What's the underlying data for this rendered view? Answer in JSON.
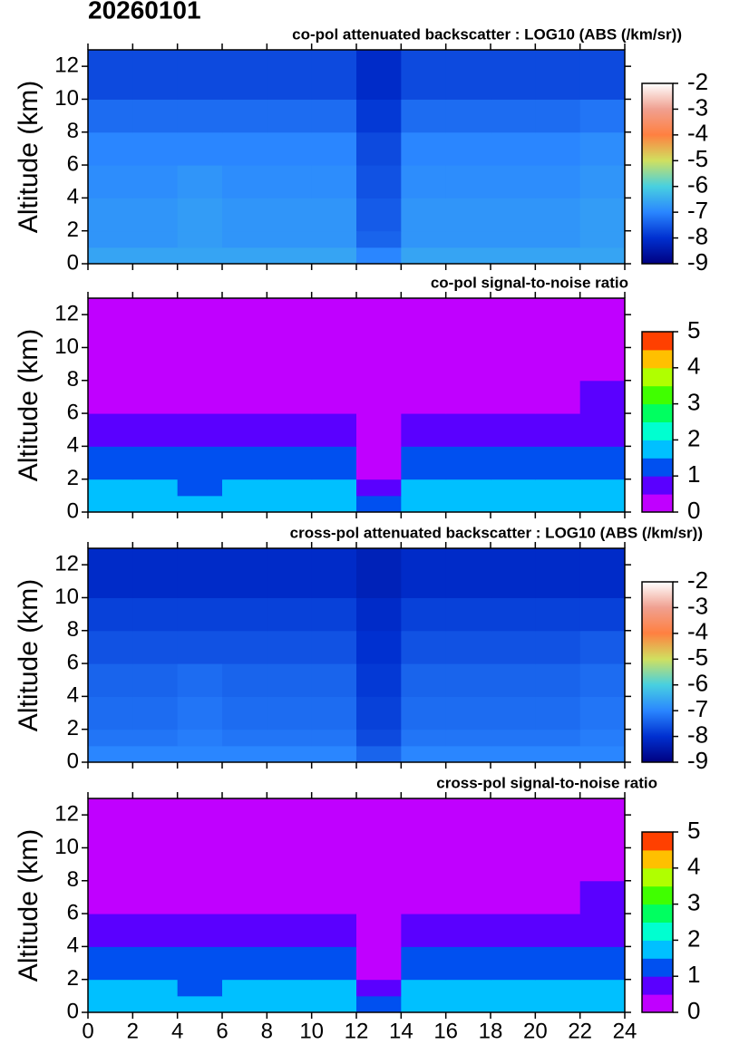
{
  "title": "20260101",
  "chart_data": [
    {
      "type": "heatmap",
      "title": "co-pol attenuated backscatter : LOG10 (ABS (/km/sr))",
      "y_label": "Altitude (km)",
      "xlim": [
        0,
        24
      ],
      "xticks": [
        0,
        2,
        4,
        6,
        8,
        10,
        12,
        14,
        16,
        18,
        20,
        22,
        24
      ],
      "xtick_labels": false,
      "ylim": [
        0,
        13
      ],
      "yticks": [
        0,
        2,
        4,
        6,
        8,
        10,
        12
      ],
      "x": [
        0,
        2,
        4,
        6,
        8,
        10,
        12,
        14,
        16,
        18,
        20,
        22,
        24
      ],
      "y": [
        0,
        1,
        2,
        4,
        6,
        8,
        10,
        13
      ],
      "z": [
        [
          -6.6,
          -6.6,
          -6.6,
          -6.6,
          -6.6,
          -6.6,
          -7.0,
          -6.6,
          -6.6,
          -6.6,
          -6.6,
          -6.6
        ],
        [
          -6.8,
          -6.8,
          -6.7,
          -6.8,
          -6.8,
          -6.8,
          -7.4,
          -6.8,
          -6.8,
          -6.8,
          -6.8,
          -6.7
        ],
        [
          -6.8,
          -6.8,
          -6.7,
          -6.8,
          -6.8,
          -6.8,
          -7.5,
          -6.8,
          -6.8,
          -6.8,
          -6.8,
          -6.7
        ],
        [
          -6.9,
          -6.9,
          -6.8,
          -6.9,
          -6.9,
          -6.9,
          -7.6,
          -6.9,
          -6.9,
          -6.9,
          -6.9,
          -6.8
        ],
        [
          -7.0,
          -7.0,
          -7.0,
          -7.0,
          -7.0,
          -7.0,
          -7.7,
          -7.0,
          -7.0,
          -7.0,
          -7.0,
          -6.9
        ],
        [
          -7.3,
          -7.3,
          -7.3,
          -7.3,
          -7.3,
          -7.3,
          -7.9,
          -7.3,
          -7.3,
          -7.3,
          -7.3,
          -7.2
        ],
        [
          -7.7,
          -7.7,
          -7.7,
          -7.7,
          -7.7,
          -7.7,
          -8.1,
          -7.7,
          -7.7,
          -7.7,
          -7.7,
          -7.7
        ]
      ],
      "zlim": [
        -9,
        -2
      ],
      "zticks": [
        -9,
        -8,
        -7,
        -6,
        -5,
        -4,
        -3,
        -2
      ],
      "discrete": false,
      "colors": [
        "#000080",
        "#0030d0",
        "#2a86ff",
        "#48d0e0",
        "#d0e060",
        "#ff8040",
        "#f0a090",
        "#ffffff"
      ]
    },
    {
      "type": "heatmap",
      "title": "co-pol signal-to-noise ratio",
      "y_label": "Altitude (km)",
      "xlim": [
        0,
        24
      ],
      "xticks": [
        0,
        2,
        4,
        6,
        8,
        10,
        12,
        14,
        16,
        18,
        20,
        22,
        24
      ],
      "xtick_labels": false,
      "ylim": [
        0,
        13
      ],
      "yticks": [
        0,
        2,
        4,
        6,
        8,
        10,
        12
      ],
      "x": [
        0,
        2,
        4,
        6,
        8,
        10,
        12,
        14,
        16,
        18,
        20,
        22,
        24
      ],
      "y": [
        0,
        1,
        2,
        4,
        6,
        8,
        10,
        13
      ],
      "z": [
        [
          1.8,
          1.8,
          1.8,
          1.8,
          1.8,
          1.8,
          1.4,
          1.8,
          1.8,
          1.8,
          1.8,
          1.8
        ],
        [
          1.7,
          1.7,
          1.3,
          1.7,
          1.7,
          1.7,
          0.7,
          1.7,
          1.7,
          1.7,
          1.7,
          1.7
        ],
        [
          1.2,
          1.2,
          1.2,
          1.2,
          1.2,
          1.2,
          0.4,
          1.2,
          1.2,
          1.2,
          1.2,
          1.2
        ],
        [
          0.8,
          0.8,
          0.7,
          0.7,
          0.7,
          0.8,
          0.3,
          0.8,
          0.8,
          0.8,
          0.8,
          0.8
        ],
        [
          0.4,
          0.4,
          0.4,
          0.4,
          0.4,
          0.4,
          0.2,
          0.4,
          0.4,
          0.4,
          0.4,
          0.6
        ],
        [
          0.3,
          0.3,
          0.3,
          0.3,
          0.3,
          0.3,
          0.1,
          0.3,
          0.3,
          0.3,
          0.3,
          0.3
        ],
        [
          0.1,
          0.1,
          0.1,
          0.1,
          0.1,
          0.1,
          0.1,
          0.1,
          0.1,
          0.1,
          0.1,
          0.1
        ]
      ],
      "zlim": [
        0,
        5
      ],
      "zticks": [
        0,
        1,
        2,
        3,
        4,
        5
      ],
      "discrete": true,
      "colors": [
        "#c000ff",
        "#5a00ff",
        "#0050f0",
        "#00c0ff",
        "#00ffd0",
        "#00ff60",
        "#40ff00",
        "#b0ff00",
        "#ffc000",
        "#ff4000"
      ]
    },
    {
      "type": "heatmap",
      "title": "cross-pol attenuated backscatter : LOG10 (ABS (/km/sr))",
      "y_label": "Altitude (km)",
      "xlim": [
        0,
        24
      ],
      "xticks": [
        0,
        2,
        4,
        6,
        8,
        10,
        12,
        14,
        16,
        18,
        20,
        22,
        24
      ],
      "xtick_labels": false,
      "ylim": [
        0,
        13
      ],
      "yticks": [
        0,
        2,
        4,
        6,
        8,
        10,
        12
      ],
      "x": [
        0,
        2,
        4,
        6,
        8,
        10,
        12,
        14,
        16,
        18,
        20,
        22,
        24
      ],
      "y": [
        0,
        1,
        2,
        4,
        6,
        8,
        10,
        13
      ],
      "z": [
        [
          -7.0,
          -7.0,
          -7.0,
          -7.0,
          -7.0,
          -7.0,
          -7.4,
          -7.0,
          -7.0,
          -7.0,
          -7.0,
          -7.0
        ],
        [
          -7.2,
          -7.2,
          -7.1,
          -7.2,
          -7.2,
          -7.2,
          -7.7,
          -7.2,
          -7.2,
          -7.2,
          -7.2,
          -7.1
        ],
        [
          -7.3,
          -7.3,
          -7.2,
          -7.3,
          -7.3,
          -7.3,
          -7.8,
          -7.3,
          -7.3,
          -7.3,
          -7.3,
          -7.2
        ],
        [
          -7.4,
          -7.4,
          -7.3,
          -7.4,
          -7.4,
          -7.4,
          -7.9,
          -7.4,
          -7.4,
          -7.4,
          -7.4,
          -7.3
        ],
        [
          -7.6,
          -7.6,
          -7.6,
          -7.6,
          -7.6,
          -7.6,
          -8.0,
          -7.6,
          -7.6,
          -7.6,
          -7.6,
          -7.5
        ],
        [
          -7.8,
          -7.8,
          -7.8,
          -7.8,
          -7.8,
          -7.8,
          -8.1,
          -7.8,
          -7.8,
          -7.8,
          -7.8,
          -7.8
        ],
        [
          -8.1,
          -8.1,
          -8.1,
          -8.1,
          -8.1,
          -8.1,
          -8.3,
          -8.1,
          -8.1,
          -8.1,
          -8.1,
          -8.1
        ]
      ],
      "zlim": [
        -9,
        -2
      ],
      "zticks": [
        -9,
        -8,
        -7,
        -6,
        -5,
        -4,
        -3,
        -2
      ],
      "discrete": false,
      "colors": [
        "#000080",
        "#0030d0",
        "#2a86ff",
        "#48d0e0",
        "#d0e060",
        "#ff8040",
        "#f0a090",
        "#ffffff"
      ]
    },
    {
      "type": "heatmap",
      "title": "cross-pol signal-to-noise ratio",
      "y_label": "Altitude (km)",
      "xlim": [
        0,
        24
      ],
      "xticks": [
        0,
        2,
        4,
        6,
        8,
        10,
        12,
        14,
        16,
        18,
        20,
        22,
        24
      ],
      "xtick_labels": true,
      "ylim": [
        0,
        13
      ],
      "yticks": [
        0,
        2,
        4,
        6,
        8,
        10,
        12
      ],
      "x": [
        0,
        2,
        4,
        6,
        8,
        10,
        12,
        14,
        16,
        18,
        20,
        22,
        24
      ],
      "y": [
        0,
        1,
        2,
        4,
        6,
        8,
        10,
        13
      ],
      "z": [
        [
          1.8,
          1.8,
          1.8,
          1.8,
          1.8,
          1.8,
          1.4,
          1.8,
          1.8,
          1.8,
          1.8,
          1.8
        ],
        [
          1.7,
          1.6,
          1.3,
          1.6,
          1.6,
          1.6,
          0.7,
          1.6,
          1.7,
          1.7,
          1.7,
          1.7
        ],
        [
          1.2,
          1.2,
          1.2,
          1.2,
          1.2,
          1.2,
          0.4,
          1.2,
          1.2,
          1.2,
          1.2,
          1.2
        ],
        [
          0.8,
          0.8,
          0.7,
          0.7,
          0.7,
          0.8,
          0.3,
          0.8,
          0.8,
          0.8,
          0.8,
          0.8
        ],
        [
          0.4,
          0.4,
          0.4,
          0.4,
          0.4,
          0.4,
          0.2,
          0.4,
          0.4,
          0.4,
          0.4,
          0.6
        ],
        [
          0.3,
          0.3,
          0.3,
          0.3,
          0.3,
          0.3,
          0.1,
          0.3,
          0.3,
          0.3,
          0.3,
          0.3
        ],
        [
          0.1,
          0.1,
          0.1,
          0.1,
          0.1,
          0.1,
          0.1,
          0.1,
          0.1,
          0.1,
          0.1,
          0.1
        ]
      ],
      "zlim": [
        0,
        5
      ],
      "zticks": [
        0,
        1,
        2,
        3,
        4,
        5
      ],
      "discrete": true,
      "colors": [
        "#c000ff",
        "#5a00ff",
        "#0050f0",
        "#00c0ff",
        "#00ffd0",
        "#00ff60",
        "#40ff00",
        "#b0ff00",
        "#ffc000",
        "#ff4000"
      ]
    }
  ]
}
